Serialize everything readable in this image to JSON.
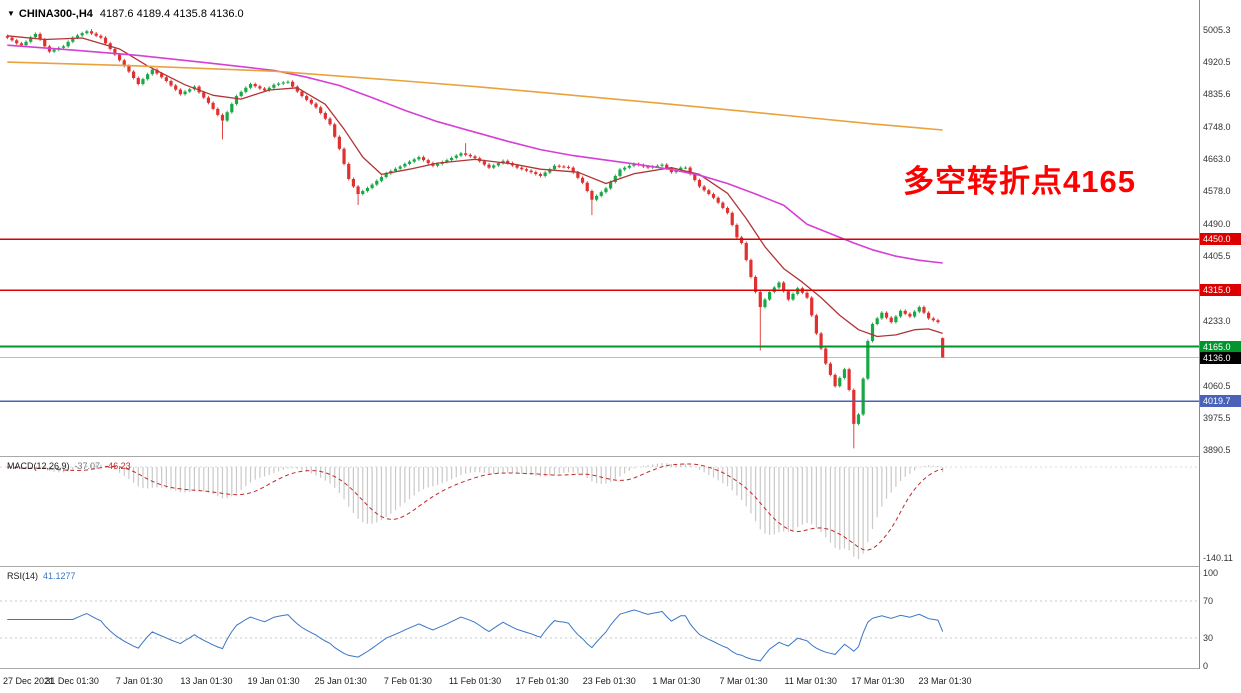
{
  "header": {
    "collapse_icon": "▼",
    "symbol_period": "CHINA300-,H4",
    "ohlc": "4187.6 4189.4 4135.8 4136.0"
  },
  "annotation": {
    "text": "多空转折点4165",
    "color": "#ff0000"
  },
  "chart_data": {
    "type": "candlestick",
    "symbol": "CHINA300-",
    "timeframe": "H4",
    "x_labels": [
      "27 Dec 2021",
      "31 Dec 01:30",
      "7 Jan 01:30",
      "13 Jan 01:30",
      "19 Jan 01:30",
      "25 Jan 01:30",
      "7 Feb 01:30",
      "11 Feb 01:30",
      "17 Feb 01:30",
      "23 Feb 01:30",
      "1 Mar 01:30",
      "7 Mar 01:30",
      "11 Mar 01:30",
      "17 Mar 01:30",
      "23 Mar 01:30"
    ],
    "closes": [
      4985,
      4978,
      4970,
      4965,
      4974,
      4986,
      4995,
      4980,
      4962,
      4948,
      4953,
      4958,
      4962,
      4974,
      4985,
      4991,
      4997,
      5002,
      4996,
      4990,
      4985,
      4970,
      4955,
      4940,
      4925,
      4910,
      4895,
      4878,
      4862,
      4875,
      4888,
      4900,
      4890,
      4880,
      4870,
      4858,
      4847,
      4835,
      4842,
      4848,
      4855,
      4840,
      4826,
      4812,
      4796,
      4780,
      4765,
      4787,
      4809,
      4830,
      4841,
      4852,
      4862,
      4856,
      4850,
      4845,
      4852,
      4860,
      4863,
      4866,
      4868,
      4855,
      4842,
      4830,
      4820,
      4810,
      4800,
      4785,
      4770,
      4755,
      4722,
      4690,
      4650,
      4610,
      4590,
      4570,
      4578,
      4586,
      4595,
      4605,
      4615,
      4625,
      4631,
      4637,
      4643,
      4650,
      4656,
      4662,
      4668,
      4660,
      4652,
      4645,
      4650,
      4655,
      4660,
      4666,
      4672,
      4678,
      4674,
      4670,
      4665,
      4657,
      4648,
      4640,
      4646,
      4652,
      4658,
      4652,
      4646,
      4640,
      4636,
      4632,
      4628,
      4623,
      4618,
      4627,
      4636,
      4645,
      4643,
      4642,
      4640,
      4627,
      4613,
      4600,
      4578,
      4555,
      4565,
      4575,
      4585,
      4602,
      4618,
      4635,
      4640,
      4645,
      4650,
      4647,
      4643,
      4640,
      4643,
      4645,
      4648,
      4638,
      4628,
      4634,
      4640,
      4640,
      4623,
      4607,
      4590,
      4580,
      4570,
      4560,
      4547,
      4533,
      4520,
      4488,
      4455,
      4440,
      4395,
      4350,
      4310,
      4270,
      4290,
      4310,
      4322,
      4335,
      4312,
      4290,
      4305,
      4320,
      4308,
      4295,
      4248,
      4200,
      4160,
      4120,
      4090,
      4060,
      4082,
      4105,
      4050,
      3960,
      3985,
      4080,
      4180,
      4225,
      4240,
      4255,
      4242,
      4230,
      4245,
      4260,
      4252,
      4245,
      4258,
      4270,
      4255,
      4240,
      4235,
      4230,
      4136
    ],
    "wick_overrides": [
      {
        "i": 18,
        "high": 5008
      },
      {
        "i": 46,
        "low": 4715
      },
      {
        "i": 75,
        "low": 4541
      },
      {
        "i": 98,
        "high": 4705
      },
      {
        "i": 125,
        "low": 4514
      },
      {
        "i": 161,
        "low": 4155
      },
      {
        "i": 181,
        "low": 3895
      }
    ],
    "last_candle": {
      "open": 4187.6,
      "high": 4189.4,
      "low": 4135.8,
      "close": 4136.0
    },
    "up_color": "#18a845",
    "down_color": "#e03030",
    "price_axis": {
      "ticks": [
        "5005.3",
        "4920.5",
        "4835.6",
        "4748.0",
        "4663.0",
        "4578.0",
        "4490.0",
        "4405.5",
        "4233.0",
        "4060.5",
        "3975.5",
        "3890.5"
      ]
    },
    "hlines": [
      {
        "value": 4450.0,
        "label": "4450.0",
        "color": "#dd0000",
        "width": 1.3
      },
      {
        "value": 4315.0,
        "label": "4315.0",
        "color": "#dd0000",
        "width": 1.3
      },
      {
        "value": 4165.0,
        "label": "4165.0",
        "color": "#00962c",
        "width": 1.8
      },
      {
        "value": 4019.7,
        "label": "4019.7",
        "color": "#4a62b8",
        "width": 1.5
      }
    ],
    "current_price": {
      "value": 4136.0,
      "label": "4136.0",
      "line_color": "#bdbdbd",
      "badge_color": "#000000"
    },
    "overlays": [
      {
        "name": "ma-fast",
        "color": "#b03535",
        "points": [
          [
            0,
            4990
          ],
          [
            8,
            4980
          ],
          [
            16,
            4984
          ],
          [
            24,
            4955
          ],
          [
            30,
            4910
          ],
          [
            38,
            4860
          ],
          [
            44,
            4832
          ],
          [
            50,
            4822
          ],
          [
            56,
            4846
          ],
          [
            62,
            4852
          ],
          [
            68,
            4808
          ],
          [
            72,
            4742
          ],
          [
            76,
            4668
          ],
          [
            80,
            4622
          ],
          [
            86,
            4636
          ],
          [
            92,
            4652
          ],
          [
            100,
            4662
          ],
          [
            108,
            4650
          ],
          [
            114,
            4636
          ],
          [
            122,
            4628
          ],
          [
            128,
            4598
          ],
          [
            134,
            4624
          ],
          [
            142,
            4640
          ],
          [
            148,
            4622
          ],
          [
            154,
            4572
          ],
          [
            158,
            4505
          ],
          [
            162,
            4430
          ],
          [
            166,
            4372
          ],
          [
            170,
            4336
          ],
          [
            174,
            4295
          ],
          [
            178,
            4248
          ],
          [
            182,
            4210
          ],
          [
            186,
            4192
          ],
          [
            190,
            4196
          ],
          [
            194,
            4210
          ],
          [
            197,
            4212
          ],
          [
            200,
            4200
          ]
        ]
      },
      {
        "name": "ma-mid",
        "color": "#d63fd6",
        "points": [
          [
            0,
            4965
          ],
          [
            14,
            4952
          ],
          [
            28,
            4938
          ],
          [
            43,
            4918
          ],
          [
            57,
            4898
          ],
          [
            64,
            4880
          ],
          [
            71,
            4858
          ],
          [
            78,
            4826
          ],
          [
            85,
            4792
          ],
          [
            92,
            4762
          ],
          [
            100,
            4734
          ],
          [
            107,
            4710
          ],
          [
            114,
            4688
          ],
          [
            121,
            4672
          ],
          [
            128,
            4660
          ],
          [
            135,
            4648
          ],
          [
            142,
            4635
          ],
          [
            148,
            4620
          ],
          [
            154,
            4598
          ],
          [
            160,
            4570
          ],
          [
            166,
            4540
          ],
          [
            171,
            4490
          ],
          [
            176,
            4465
          ],
          [
            181,
            4440
          ],
          [
            185,
            4422
          ],
          [
            190,
            4405
          ],
          [
            195,
            4394
          ],
          [
            200,
            4387
          ]
        ]
      },
      {
        "name": "ma-slow",
        "color": "#e8a33d",
        "points": [
          [
            0,
            4920
          ],
          [
            28,
            4910
          ],
          [
            57,
            4896
          ],
          [
            85,
            4870
          ],
          [
            100,
            4855
          ],
          [
            114,
            4840
          ],
          [
            128,
            4824
          ],
          [
            142,
            4808
          ],
          [
            157,
            4790
          ],
          [
            171,
            4773
          ],
          [
            185,
            4756
          ],
          [
            200,
            4740
          ]
        ]
      }
    ],
    "macd": {
      "label": "MACD(12,26,9)",
      "main_value": "-37.07",
      "signal_value": "-46.23",
      "fast": 12,
      "slow": 26,
      "signal": 9,
      "histogram_color": "#c9c9c9",
      "signal_color": "#c22a2a",
      "scale_bottom_label": "-140.11"
    },
    "rsi": {
      "label": "RSI(14)",
      "value": "41.1277",
      "period": 14,
      "color": "#3a76c4",
      "levels": [
        30,
        70
      ],
      "scale_labels": [
        {
          "text": "100",
          "value": 100
        },
        {
          "text": "70",
          "value": 70
        },
        {
          "text": "30",
          "value": 30
        },
        {
          "text": "0",
          "value": 0
        }
      ]
    }
  }
}
